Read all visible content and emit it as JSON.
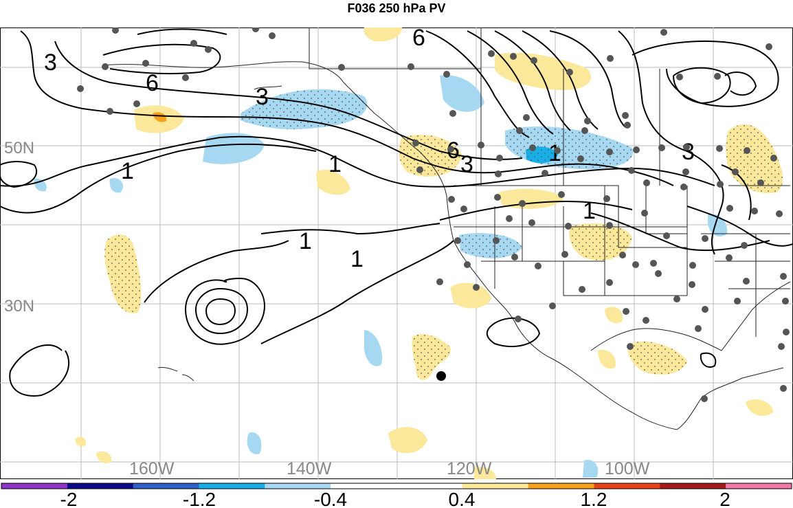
{
  "title": "F036 250 hPa PV",
  "grid": {
    "lat_labels": [
      "50N",
      "30N"
    ],
    "lon_labels": [
      "160W",
      "140W",
      "120W",
      "100W"
    ]
  },
  "contour_labels": [
    "3",
    "6",
    "3",
    "6",
    "3",
    "1",
    "1",
    "1",
    "1",
    "6",
    "1",
    "1",
    "3"
  ],
  "colorbar": {
    "tick_labels": [
      "-2",
      "-1.2",
      "-0.4",
      "0.4",
      "1.2",
      "2"
    ],
    "colors": [
      "#8e35c8",
      "#0a0a88",
      "#2f5fc8",
      "#18aee8",
      "#a6d8f2",
      "#ffffff",
      "#ffffff",
      "#fbe89a",
      "#f7a21a",
      "#e8421a",
      "#a61a1a",
      "#f07aa6"
    ]
  },
  "colors": {
    "negative_shade": "#a6d8f2",
    "negative_strong": "#18aee8",
    "positive_shade": "#fbe89a",
    "positive_strong": "#f7a21a",
    "station_dot": "#555555",
    "grid_line": "#bbbbbb"
  }
}
